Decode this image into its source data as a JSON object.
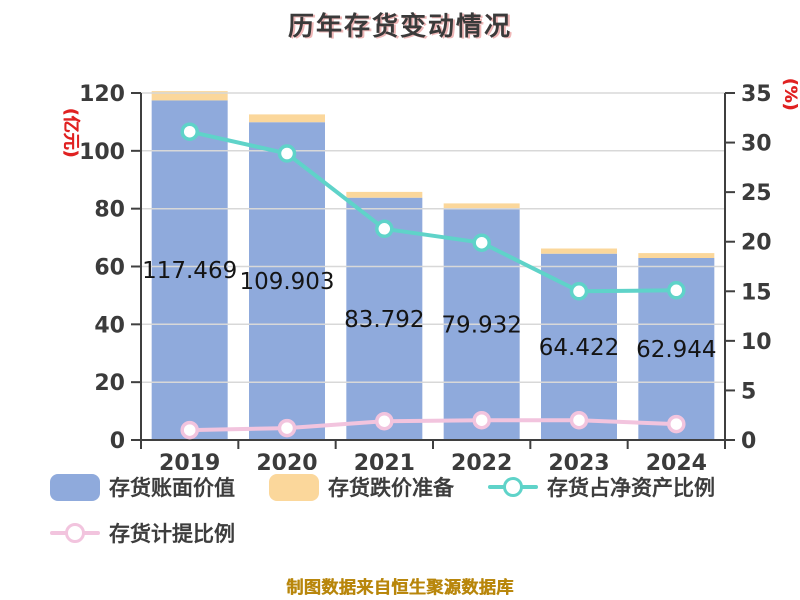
{
  "title": "历年存货变动情况",
  "footer": {
    "source_note": "制图数据来自恒生聚源数据库"
  },
  "colors": {
    "bar_book_value": "#8FAADC",
    "bar_provision": "#FBD79B",
    "line_net_asset_ratio": "#5FD3C9",
    "line_provision_ratio": "#F2C4DE",
    "grid": "#D8D8D8",
    "axis": "#3F3F3F",
    "tick_text": "#3B3B3B",
    "value_label_text": "#141414",
    "axis_unit_text": "#E02121",
    "source_note_text": "#B8860B"
  },
  "chart_data": {
    "type": "bar",
    "subtype": "stacked-bar-with-lines-dual-axis",
    "title": "历年存货变动情况",
    "categories": [
      "2019",
      "2020",
      "2021",
      "2022",
      "2023",
      "2024"
    ],
    "series": [
      {
        "name": "存货账面价值",
        "type": "bar",
        "axis": "left",
        "color": "#8FAADC",
        "values": [
          117.469,
          109.903,
          83.792,
          79.932,
          64.422,
          62.944
        ],
        "data_labels": [
          "117.469",
          "109.903",
          "83.792",
          "79.932",
          "64.422",
          "62.944"
        ]
      },
      {
        "name": "存货跌价准备",
        "type": "bar",
        "axis": "left",
        "color": "#FBD79B",
        "stacked_on": "存货账面价值",
        "values": [
          3.2,
          2.7,
          2.0,
          1.9,
          1.8,
          1.7
        ]
      },
      {
        "name": "存货占净资产比例",
        "type": "line",
        "axis": "right",
        "color": "#5FD3C9",
        "values": [
          31.1,
          28.9,
          21.3,
          19.9,
          15.0,
          15.1
        ]
      },
      {
        "name": "存货计提比例",
        "type": "line",
        "axis": "right",
        "color": "#F2C4DE",
        "values": [
          1.0,
          1.2,
          1.9,
          2.0,
          2.0,
          1.6
        ]
      }
    ],
    "left_axis": {
      "label": "(亿元)",
      "min": 0,
      "max": 120,
      "tick_step": 20,
      "ticks": [
        0,
        20,
        40,
        60,
        80,
        100,
        120
      ]
    },
    "right_axis": {
      "label": "(%)",
      "min": 0,
      "max": 35,
      "tick_step": 5,
      "ticks": [
        0,
        5,
        10,
        15,
        20,
        25,
        30,
        35
      ]
    },
    "grid": true,
    "legend_position": "bottom"
  }
}
